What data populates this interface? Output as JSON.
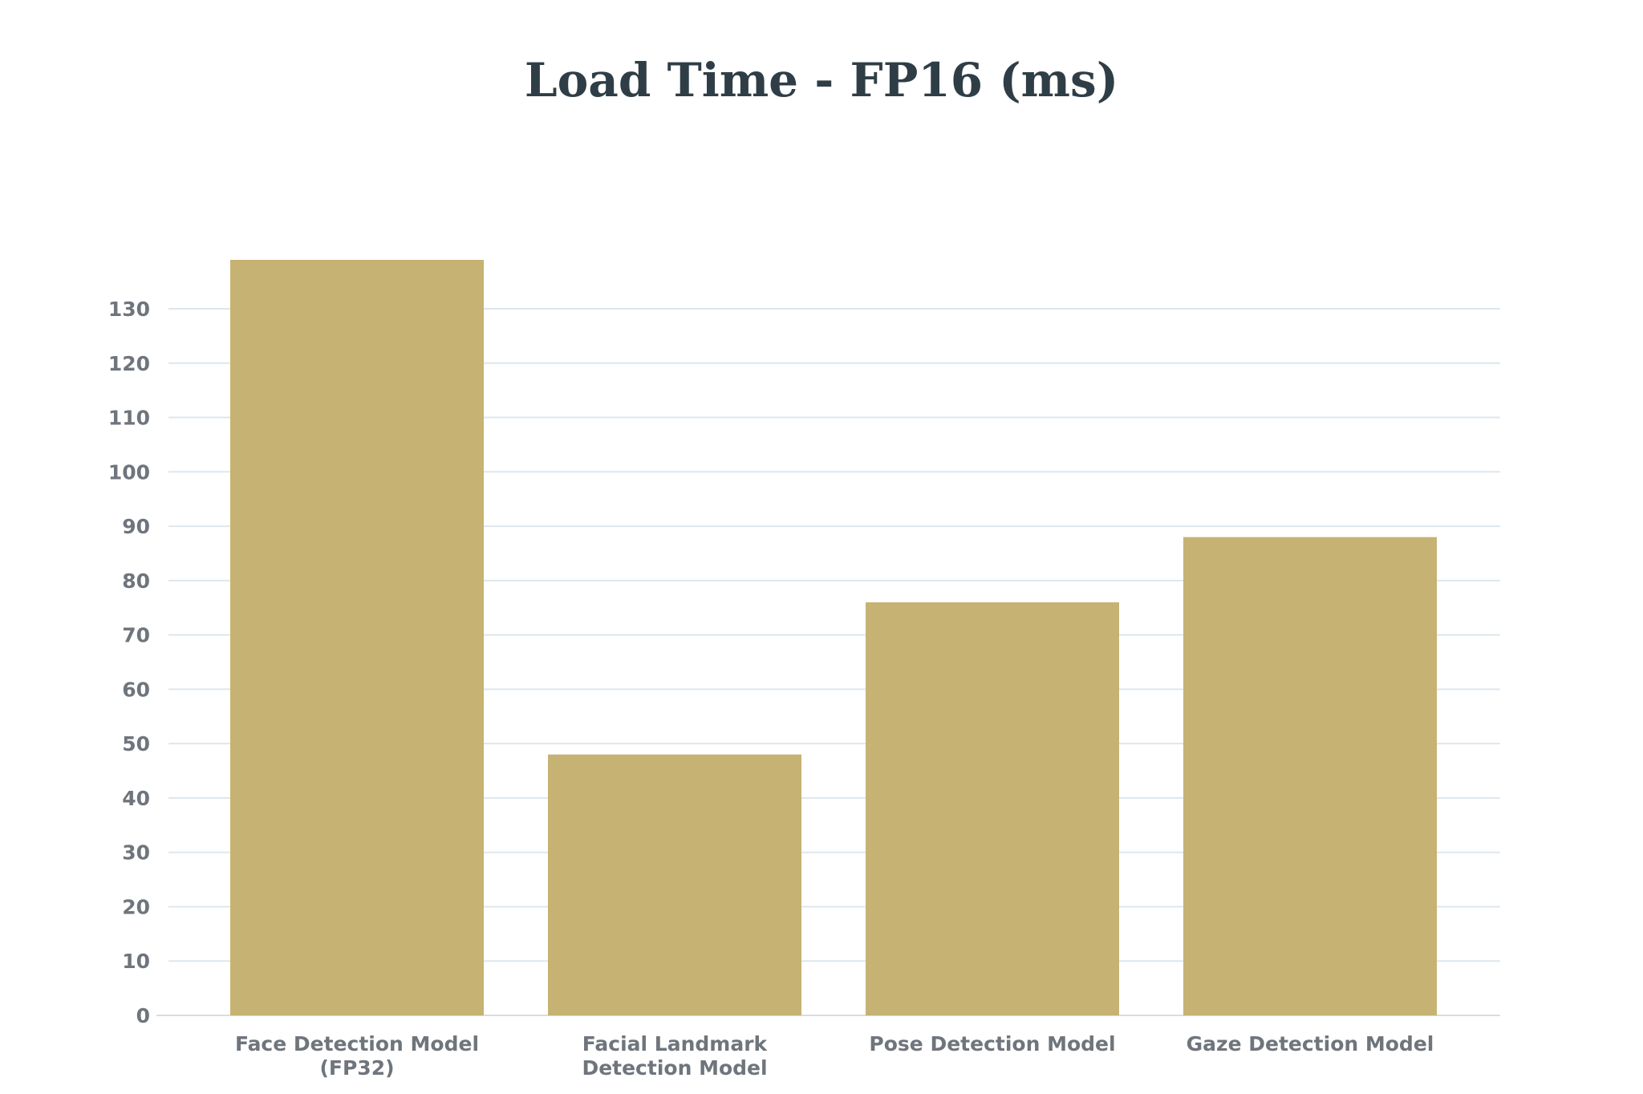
{
  "chart_data": {
    "type": "bar",
    "title": "Load Time - FP16 (ms)",
    "xlabel": "",
    "ylabel": "",
    "categories": [
      [
        "Face Detection Model",
        "(FP32)"
      ],
      [
        "Facial Landmark",
        "Detection Model"
      ],
      [
        "Pose Detection Model"
      ],
      [
        "Gaze Detection Model"
      ]
    ],
    "values": [
      139,
      48,
      76,
      88
    ],
    "ylim": [
      0,
      139
    ],
    "yticks": [
      0,
      10,
      20,
      30,
      40,
      50,
      60,
      70,
      80,
      90,
      100,
      110,
      120,
      130
    ],
    "grid": true,
    "legend": "none",
    "bar_color": "#c6b273"
  }
}
